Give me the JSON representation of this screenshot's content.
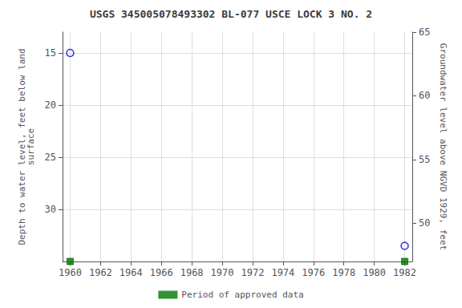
{
  "chart_data": {
    "type": "scatter",
    "title": "USGS 345005078493302 BL-077 USCE LOCK 3 NO. 2",
    "xlim": [
      1959.5,
      1982.5
    ],
    "xticks": [
      1960,
      1962,
      1964,
      1966,
      1968,
      1970,
      1972,
      1974,
      1976,
      1978,
      1980,
      1982
    ],
    "ylabel": "Depth to water level, feet below land\nsurface",
    "ylim": [
      35,
      13
    ],
    "yticks": [
      15,
      20,
      25,
      30
    ],
    "y2label": "Groundwater level above NGVD 1929, feet",
    "y2lim": [
      47,
      65
    ],
    "y2ticks": [
      65,
      60,
      55,
      50
    ],
    "grid": true,
    "legend": "bottom",
    "series": [
      {
        "x": [
          1960.0,
          1982.0
        ],
        "values": [
          15.0,
          33.5
        ],
        "color": "#0000cc",
        "marker": "circle"
      },
      {
        "name": "Period of approved data",
        "x": [
          1960.0,
          1982.0
        ],
        "values": [
          35,
          35
        ],
        "color": "#007700",
        "marker": "square"
      }
    ]
  }
}
